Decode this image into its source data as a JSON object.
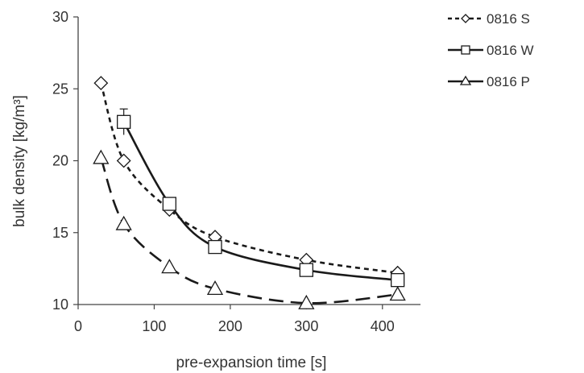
{
  "chart_data": {
    "type": "line",
    "xlabel": "pre-expansion time [s]",
    "ylabel": "bulk density [kg/m³]",
    "xlim": [
      0,
      450
    ],
    "ylim": [
      10,
      30
    ],
    "x_ticks": [
      0,
      100,
      200,
      300,
      400
    ],
    "y_ticks": [
      10,
      15,
      20,
      25,
      30
    ],
    "x_tick_labels": [
      "0",
      "100",
      "200",
      "300",
      "400"
    ],
    "y_tick_labels": [
      "10",
      "15",
      "20",
      "25",
      "30"
    ],
    "grid": false,
    "legend_position": "right",
    "series": [
      {
        "name": "0816 S",
        "marker": "diamond",
        "line_style": "short-dash",
        "points": [
          {
            "x": 30,
            "y": 25.4
          },
          {
            "x": 60,
            "y": 20.0
          },
          {
            "x": 120,
            "y": 16.6
          },
          {
            "x": 180,
            "y": 14.7
          },
          {
            "x": 300,
            "y": 13.1
          },
          {
            "x": 420,
            "y": 12.2
          }
        ]
      },
      {
        "name": "0816 W",
        "marker": "square",
        "line_style": "solid",
        "points": [
          {
            "x": 60,
            "y": 22.7,
            "err": 0.9
          },
          {
            "x": 120,
            "y": 17.0
          },
          {
            "x": 180,
            "y": 14.0
          },
          {
            "x": 300,
            "y": 12.4
          },
          {
            "x": 420,
            "y": 11.7
          }
        ]
      },
      {
        "name": "0816 P",
        "marker": "triangle",
        "line_style": "long-dash",
        "points": [
          {
            "x": 30,
            "y": 20.2
          },
          {
            "x": 60,
            "y": 15.6
          },
          {
            "x": 120,
            "y": 12.6
          },
          {
            "x": 180,
            "y": 11.1
          },
          {
            "x": 300,
            "y": 10.1
          },
          {
            "x": 420,
            "y": 10.7
          }
        ]
      }
    ],
    "colors": {
      "line": "#1a1a1a",
      "marker_fill": "#ffffff",
      "axis": "#444444",
      "text": "#333333"
    }
  }
}
